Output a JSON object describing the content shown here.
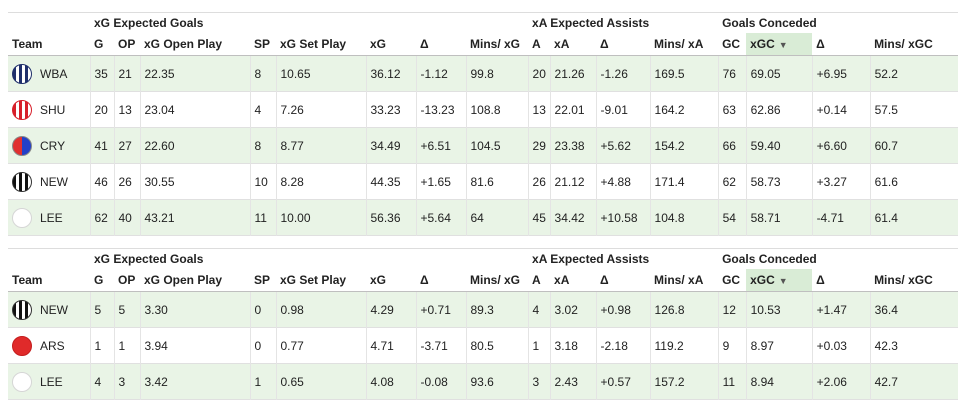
{
  "table1": {
    "groups": {
      "xg": "xG Expected Goals",
      "xa": "xA Expected Assists",
      "gc": "Goals Conceded"
    },
    "headers": [
      "Team",
      "G",
      "OP",
      "xG Open Play",
      "SP",
      "xG Set Play",
      "xG",
      "Δ",
      "Mins/ xG",
      "A",
      "xA",
      "Δ",
      "Mins/ xA",
      "GC",
      "xGC",
      "Δ",
      "Mins/ xGC"
    ],
    "sort_arrow": "▼",
    "rows": [
      {
        "badge": "stripes-navy",
        "team": "WBA",
        "cells": [
          "35",
          "21",
          "22.35",
          "8",
          "10.65",
          "36.12",
          "-1.12",
          "99.8",
          "20",
          "21.26",
          "-1.26",
          "169.5",
          "76",
          "69.05",
          "+6.95",
          "52.2"
        ]
      },
      {
        "badge": "stripes-red",
        "team": "SHU",
        "cells": [
          "20",
          "13",
          "23.04",
          "4",
          "7.26",
          "33.23",
          "-13.23",
          "108.8",
          "13",
          "22.01",
          "-9.01",
          "164.2",
          "63",
          "62.86",
          "+0.14",
          "57.5"
        ]
      },
      {
        "badge": "split-red-blue",
        "team": "CRY",
        "cells": [
          "41",
          "27",
          "22.60",
          "8",
          "8.77",
          "34.49",
          "+6.51",
          "104.5",
          "29",
          "23.38",
          "+5.62",
          "154.2",
          "66",
          "59.40",
          "+6.60",
          "60.7"
        ]
      },
      {
        "badge": "stripes-black",
        "team": "NEW",
        "cells": [
          "46",
          "26",
          "30.55",
          "10",
          "8.28",
          "44.35",
          "+1.65",
          "81.6",
          "26",
          "21.12",
          "+4.88",
          "171.4",
          "62",
          "58.73",
          "+3.27",
          "61.6"
        ]
      },
      {
        "badge": "white",
        "team": "LEE",
        "cells": [
          "62",
          "40",
          "43.21",
          "11",
          "10.00",
          "56.36",
          "+5.64",
          "64",
          "45",
          "34.42",
          "+10.58",
          "104.8",
          "54",
          "58.71",
          "-4.71",
          "61.4"
        ]
      }
    ]
  },
  "table2": {
    "groups": {
      "xg": "xG Expected Goals",
      "xa": "xA Expected Assists",
      "gc": "Goals Conceded"
    },
    "headers": [
      "Team",
      "G",
      "OP",
      "xG Open Play",
      "SP",
      "xG Set Play",
      "xG",
      "Δ",
      "Mins/ xG",
      "A",
      "xA",
      "Δ",
      "Mins/ xA",
      "GC",
      "xGC",
      "Δ",
      "Mins/ xGC"
    ],
    "sort_arrow": "▼",
    "rows": [
      {
        "badge": "stripes-black",
        "team": "NEW",
        "cells": [
          "5",
          "5",
          "3.30",
          "0",
          "0.98",
          "4.29",
          "+0.71",
          "89.3",
          "4",
          "3.02",
          "+0.98",
          "126.8",
          "12",
          "10.53",
          "+1.47",
          "36.4"
        ]
      },
      {
        "badge": "red",
        "team": "ARS",
        "cells": [
          "1",
          "1",
          "3.94",
          "0",
          "0.77",
          "4.71",
          "-3.71",
          "80.5",
          "1",
          "3.18",
          "-2.18",
          "119.2",
          "9",
          "8.97",
          "+0.03",
          "42.3"
        ]
      },
      {
        "badge": "white",
        "team": "LEE",
        "cells": [
          "4",
          "3",
          "3.42",
          "1",
          "0.65",
          "4.08",
          "-0.08",
          "93.6",
          "3",
          "2.43",
          "+0.57",
          "157.2",
          "11",
          "8.94",
          "+2.06",
          "42.7"
        ]
      }
    ]
  }
}
